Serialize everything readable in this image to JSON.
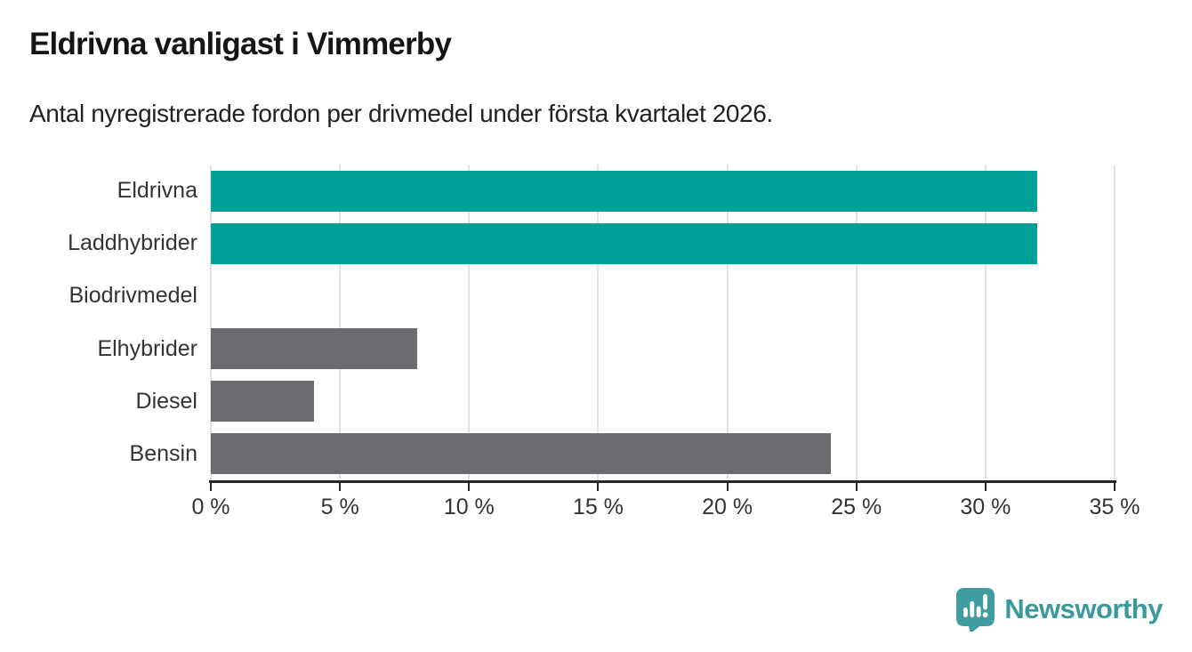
{
  "header": {
    "title": "Eldrivna vanligast i Vimmerby",
    "subtitle": "Antal nyregistrerade fordon per drivmedel under första kvartalet 2026."
  },
  "chart_data": {
    "type": "bar",
    "orientation": "horizontal",
    "title": "Eldrivna vanligast i Vimmerby",
    "subtitle": "Antal nyregistrerade fordon per drivmedel under första kvartalet 2026.",
    "categories": [
      "Eldrivna",
      "Laddhybrider",
      "Biodrivmedel",
      "Elhybrider",
      "Diesel",
      "Bensin"
    ],
    "values": [
      32,
      32,
      0,
      8,
      4,
      24
    ],
    "unit": "%",
    "xlabel": "",
    "ylabel": "",
    "xlim": [
      0,
      35
    ],
    "x_ticks": [
      0,
      5,
      10,
      15,
      20,
      25,
      30,
      35
    ],
    "x_tick_labels": [
      "0 %",
      "5 %",
      "10 %",
      "15 %",
      "20 %",
      "25 %",
      "30 %",
      "35 %"
    ],
    "grid": "vertical-gridlines-behind-bars",
    "legend": "none",
    "bar_colors": [
      "#00a099",
      "#00a099",
      "#6c6b70",
      "#6c6b70",
      "#6c6b70",
      "#6c6b70"
    ],
    "highlight_color": "#00a099",
    "default_color": "#6c6b70",
    "gridline_color": "#e2e2e4",
    "axis_color": "#262626"
  },
  "footer": {
    "brand": "Newsworthy",
    "brand_color": "#3a999c",
    "logo_icon": "newsworthy-badge-chart-icon"
  }
}
